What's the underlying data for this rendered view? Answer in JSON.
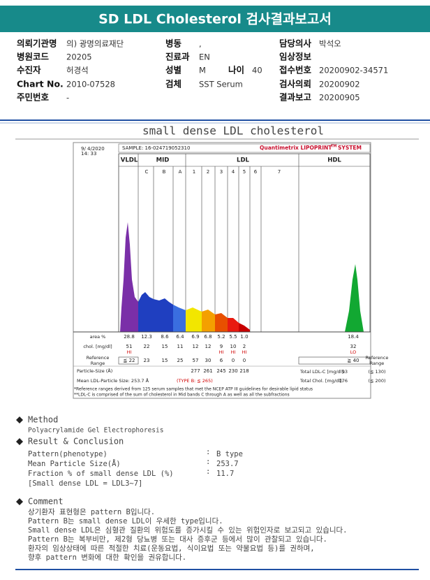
{
  "header": {
    "title": "SD LDL Cholesterol 검사결과보고서"
  },
  "patient": {
    "col1": [
      {
        "label": "의뢰기관명",
        "value": "의) 광명의료재단"
      },
      {
        "label": "병원코드",
        "value": "20205"
      },
      {
        "label": "수진자",
        "value": "허경석"
      },
      {
        "label": "Chart No.",
        "value": "2010-07528"
      },
      {
        "label": "주민번호",
        "value": "-"
      }
    ],
    "col2": [
      {
        "label": "병동",
        "value": ","
      },
      {
        "label": "진료과",
        "value": "EN"
      },
      {
        "label": "성별",
        "value": "M"
      },
      {
        "label": "검체",
        "value": "SST Serum"
      }
    ],
    "age": {
      "label": "나이",
      "value": "40"
    },
    "col3": [
      {
        "label": "담당의사",
        "value": "박석오"
      },
      {
        "label": "임상정보"
      },
      {
        "label": "접수번호",
        "value": "20200902-34571"
      },
      {
        "label": "검사의뢰",
        "value": "20200902"
      },
      {
        "label": "결과보고",
        "value": "20200905"
      }
    ]
  },
  "section_title": "small dense LDL cholesterol",
  "chart": {
    "date": "9/ 4/2020",
    "time": "14: 33",
    "sample": "SAMPLE: 16-024719052310",
    "brand": "Quantimetrix LIPOPRINT",
    "brand_tm": "TM",
    "brand_suffix": "SYSTEM",
    "groups": [
      "VLDL",
      "MID",
      "LDL",
      "HDL"
    ],
    "bands": [
      "C",
      "B",
      "A",
      "1",
      "2",
      "3",
      "4",
      "5",
      "6",
      "7"
    ],
    "row_labels": {
      "area": "area %",
      "chol": "chol. [mg/dl]",
      "ref": [
        "Reference",
        "Range"
      ],
      "size": "Particle-Size (Å)"
    },
    "columns": [
      {
        "area": "28.8",
        "chol": "51",
        "flag": "HI",
        "ref": "≦ 22"
      },
      {
        "area": "12.3",
        "chol": "22",
        "ref": "23"
      },
      {
        "area": "8.6",
        "chol": "15",
        "ref": "15"
      },
      {
        "area": "6.4",
        "chol": "11",
        "ref": "25"
      },
      {
        "area": "6.9",
        "chol": "12",
        "ref": "57",
        "size": "277"
      },
      {
        "area": "6.8",
        "chol": "12",
        "ref": "30",
        "size": "261"
      },
      {
        "area": "5.2",
        "chol": "9",
        "flag": "HI",
        "ref": "6",
        "size": "245"
      },
      {
        "area": "5.5",
        "chol": "10",
        "flag": "HI",
        "ref": "0",
        "size": "230"
      },
      {
        "area": "1.0",
        "chol": "2",
        "flag": "HI",
        "ref": "0",
        "size": "218"
      },
      {
        "area": "18.4",
        "chol": "32",
        "flag": "LO",
        "ref": "≧ 40"
      }
    ],
    "ref_right": [
      "Reference",
      "Range"
    ],
    "totals": [
      {
        "label": "Total LDL-C [mg/dl]:",
        "value": "93",
        "range": "(≦ 130)"
      },
      {
        "label": "Total Chol. [mg/dl]:",
        "value": "176",
        "range": "(≦ 200)"
      }
    ],
    "mean_size": "Mean LDL-Particle Size:  253.7 Å",
    "type": "(TYPE B: ≦ 265)",
    "footnotes": [
      "*Reference ranges derived from 125 serum samples that met the NCEP ATP III guidelines for desirable lipid status",
      "**LDL-C is comprised of the sum of cholesterol in Mid bands C through A as well as all the subfractions"
    ]
  },
  "method": {
    "heading": "Method",
    "text": "Polyacrylamide Gel Electrophoresis"
  },
  "result": {
    "heading": "Result & Conclusion",
    "separator": ":",
    "rows": [
      {
        "label": "Pattern(phenotype)",
        "value": "B type"
      },
      {
        "label": "Mean Particle Size(Å)",
        "value": "253.7"
      },
      {
        "label": "Fraction % of small dense LDL (%)",
        "value": "11.7"
      }
    ],
    "note": "[Small dense LDL = LDL3~7]"
  },
  "comment": {
    "heading": "Comment",
    "lines": [
      "상기환자 표현형은 pattern B입니다.",
      "Pattern B는 small dense LDL이 우세한 type입니다.",
      "Small dense LDL은 심혈관 질환의 위험도를 증가시킬 수 있는 위험인자로 보고되고 있습니다.",
      "Pattern B는 복부비만, 제2형 당뇨병 또는 대사 증후군 등에서 많이 관찰되고 있습니다.",
      "환자의 임상상태에 따른 적절한 치료(운동요법, 식이요법 또는 약물요법 등)를 권하며,",
      "향후 pattern 변화에 대한 확인을 권유합니다."
    ]
  }
}
